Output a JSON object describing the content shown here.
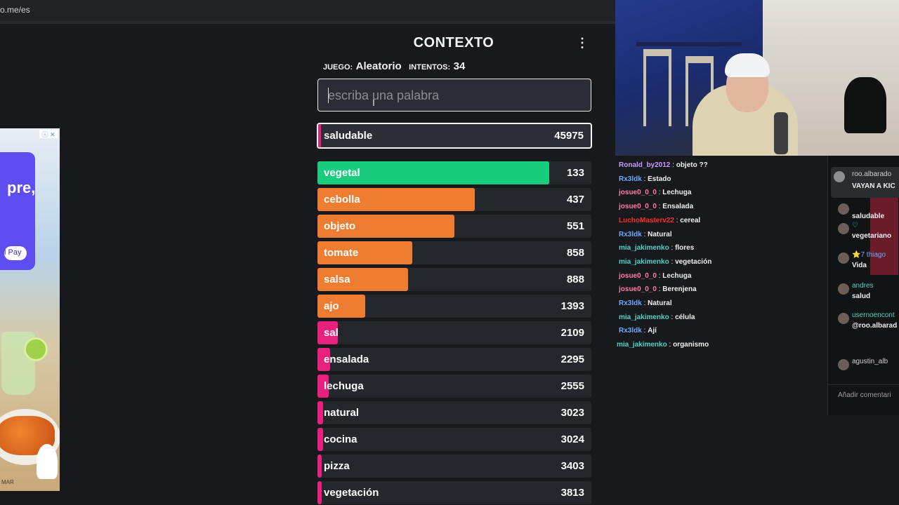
{
  "browser": {
    "url": "o.me/es"
  },
  "ad": {
    "text": "pre,",
    "pay_label": "l Pay",
    "info": "ⓘ ✕",
    "brand": "MAR"
  },
  "game": {
    "title": "CONTEXTO",
    "menu": "⋮",
    "game_label": "JUEGO:",
    "game_value": "Aleatorio",
    "attempts_label": "INTENTOS:",
    "attempts_value": "34",
    "search_placeholder": "escriba una palabra",
    "current": {
      "word": "saludable",
      "rank": "45975"
    },
    "colors": {
      "green": "#19cc7e",
      "orange": "#ef7d31",
      "pink": "#e8217f"
    },
    "guesses": [
      {
        "word": "vegetal",
        "rank": "133",
        "fill": 0.845,
        "color": "green"
      },
      {
        "word": "cebolla",
        "rank": "437",
        "fill": 0.575,
        "color": "orange"
      },
      {
        "word": "objeto",
        "rank": "551",
        "fill": 0.5,
        "color": "orange"
      },
      {
        "word": "tomate",
        "rank": "858",
        "fill": 0.345,
        "color": "orange"
      },
      {
        "word": "salsa",
        "rank": "888",
        "fill": 0.33,
        "color": "orange"
      },
      {
        "word": "ajo",
        "rank": "1393",
        "fill": 0.175,
        "color": "orange"
      },
      {
        "word": "sal",
        "rank": "2109",
        "fill": 0.075,
        "color": "pink"
      },
      {
        "word": "ensalada",
        "rank": "2295",
        "fill": 0.045,
        "color": "pink"
      },
      {
        "word": "lechuga",
        "rank": "2555",
        "fill": 0.04,
        "color": "pink"
      },
      {
        "word": "natural",
        "rank": "3023",
        "fill": 0.02,
        "color": "pink"
      },
      {
        "word": "cocina",
        "rank": "3024",
        "fill": 0.02,
        "color": "pink"
      },
      {
        "word": "pizza",
        "rank": "3403",
        "fill": 0.015,
        "color": "pink"
      },
      {
        "word": "vegetación",
        "rank": "3813",
        "fill": 0.015,
        "color": "pink"
      }
    ]
  },
  "chat": {
    "messages": [
      {
        "user": "Ronald_by2012",
        "text": "objeto ??",
        "color": "#c79cff"
      },
      {
        "user": "Rx3ldk",
        "text": "Estado",
        "color": "#6fa8ff"
      },
      {
        "user": "josue0_0_0",
        "text": "Lechuga",
        "color": "#ff7aa8"
      },
      {
        "user": "josue0_0_0",
        "text": "Ensalada",
        "color": "#ff7aa8"
      },
      {
        "user": "LuchoMasterv22",
        "text": "cereal",
        "color": "#ff2a2a"
      },
      {
        "user": "Rx3ldk",
        "text": "Natural",
        "color": "#6fa8ff"
      },
      {
        "user": "mia_jakimenko",
        "text": "flores",
        "color": "#4fd1c5"
      },
      {
        "user": "mia_jakimenko",
        "text": "vegetación",
        "color": "#4fd1c5"
      },
      {
        "user": "josue0_0_0",
        "text": "Lechuga",
        "color": "#ff7aa8"
      },
      {
        "user": "josue0_0_0",
        "text": "Berenjena",
        "color": "#ff7aa8"
      },
      {
        "user": "Rx3ldk",
        "text": "Natural",
        "color": "#6fa8ff"
      },
      {
        "user": "mia_jakimenko",
        "text": "célula",
        "color": "#4fd1c5"
      },
      {
        "user": "Rx3ldk",
        "text": "Ají",
        "color": "#6fa8ff"
      },
      {
        "user": "mia_jakimenko",
        "text": "organismo",
        "color": "#4fd1c5"
      }
    ]
  },
  "side_chat": {
    "top_user": "roo.albarado",
    "top_text": "VAYAN A KIC",
    "items": [
      {
        "user": "",
        "text": "saludable",
        "color": "#f0f0f0"
      },
      {
        "user": "♡",
        "text": "vegetariano",
        "color": "#4fd1c5"
      },
      {
        "user": "⭐7 thiago",
        "text": "Vida",
        "color": "#6fa8ff"
      },
      {
        "user": "andres",
        "text": "salud",
        "color": "#4fd1c5"
      },
      {
        "user": "usernoencont",
        "text": "@roo.albarad kick",
        "color": "#4fd1c5"
      },
      {
        "user": "agustin_alb",
        "text": "",
        "color": "#d0d0d0"
      }
    ],
    "comment_placeholder": "Añadir comentari"
  }
}
